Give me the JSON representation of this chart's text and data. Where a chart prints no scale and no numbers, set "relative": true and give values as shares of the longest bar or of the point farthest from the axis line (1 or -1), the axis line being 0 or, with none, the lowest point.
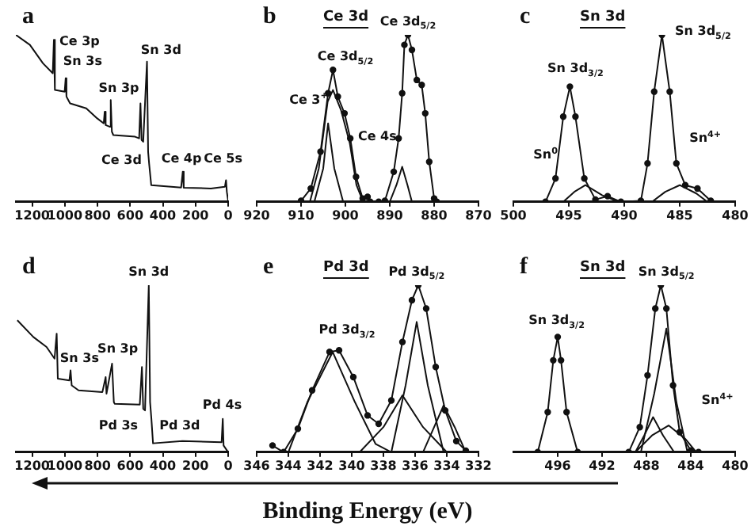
{
  "chart_data": [
    {
      "type": "line",
      "title": "a",
      "relative": true,
      "tick_labels": "x",
      "xlim": [
        1300,
        0
      ],
      "xticks": [
        1200,
        1000,
        800,
        600,
        400,
        200,
        0
      ],
      "annotations": [
        "Ce 3p",
        "Sn 3s",
        "Sn 3p",
        "Sn 3d",
        "Ce 3d",
        "Ce 4p",
        "Ce 5s"
      ],
      "series": [
        {
          "color": "#111111",
          "marker": "none",
          "x": [
            1300,
            1214,
            1134,
            1074,
            1067,
            1061,
            1001,
            995,
            990,
            968,
            869,
            802,
            762,
            756,
            750,
            726,
            719,
            712,
            703,
            570,
            545,
            537,
            530,
            520,
            497,
            490,
            484,
            471,
            288,
            278,
            272,
            106,
            20,
            13,
            8,
            0
          ],
          "values": [
            1.0,
            0.94,
            0.83,
            0.77,
            0.97,
            0.67,
            0.66,
            0.74,
            0.63,
            0.59,
            0.56,
            0.5,
            0.47,
            0.54,
            0.46,
            0.45,
            0.61,
            0.42,
            0.4,
            0.39,
            0.38,
            0.59,
            0.37,
            0.36,
            0.84,
            0.3,
            0.23,
            0.1,
            0.086,
            0.18,
            0.085,
            0.08,
            0.09,
            0.13,
            0.06,
            0.006
          ]
        }
      ]
    },
    {
      "type": "line",
      "title": "b",
      "subtitle": "Ce 3d",
      "relative": true,
      "tick_labels": "x",
      "xlim": [
        920,
        870
      ],
      "xticks": [
        920,
        910,
        900,
        890,
        880,
        870
      ],
      "annotations": [
        "Ce 3d$_{5/2}$",
        "Ce 3d$_{5/2}$",
        "Ce 3$^{+}$",
        "Ce 4s"
      ],
      "series": [
        {
          "color": "#111111",
          "marker": "circle",
          "x": [
            910,
            907.8,
            905.6,
            903.9,
            902.8,
            901.7,
            900.2,
            898.9,
            897.6,
            896.1,
            895,
            894.4,
            892.5,
            891.1,
            889.1,
            888,
            887.2,
            886.7,
            885.9,
            885,
            883.9,
            882.8,
            882,
            881.1,
            880,
            879.4
          ],
          "values": [
            0.006,
            0.08,
            0.3,
            0.65,
            0.79,
            0.63,
            0.53,
            0.38,
            0.15,
            0.02,
            0.03,
            0,
            0,
            0.006,
            0.18,
            0.38,
            0.65,
            0.94,
            1.0,
            0.91,
            0.73,
            0.7,
            0.53,
            0.24,
            0.02,
            0
          ]
        },
        {
          "color": "#111111",
          "marker": "none",
          "x": [
            907,
            905,
            903.9,
            902.5,
            900.5
          ],
          "values": [
            0,
            0.2,
            0.47,
            0.2,
            0
          ]
        },
        {
          "color": "#111111",
          "marker": "none",
          "x": [
            908,
            906,
            904,
            902.8,
            901,
            899,
            897.5,
            896
          ],
          "values": [
            0,
            0.2,
            0.6,
            0.67,
            0.55,
            0.35,
            0.1,
            0
          ]
        },
        {
          "color": "#111111",
          "marker": "none",
          "x": [
            890,
            888.5,
            887.2,
            886,
            885
          ],
          "values": [
            0,
            0.1,
            0.21,
            0.1,
            0
          ]
        }
      ]
    },
    {
      "type": "line",
      "title": "c",
      "subtitle": "Sn 3d",
      "relative": true,
      "tick_labels": "x",
      "xlim": [
        500,
        480
      ],
      "xticks": [
        500,
        495,
        490,
        485,
        480
      ],
      "annotations": [
        "Sn 3d$_{5/2}$",
        "Sn 3d$_{3/2}$",
        "Sn$^{0}$",
        "Sn$^{4+}$"
      ],
      "series": [
        {
          "color": "#111111",
          "marker": "circle",
          "x": [
            497.1,
            496.2,
            495.5,
            494.9,
            494.4,
            493.6,
            492.6,
            491.5,
            490.3,
            488.5,
            487.9,
            487.3,
            486.6,
            485.9,
            485.3,
            484.5,
            483.4,
            482.2
          ],
          "values": [
            0,
            0.14,
            0.51,
            0.69,
            0.51,
            0.14,
            0.014,
            0.034,
            0,
            0.006,
            0.23,
            0.66,
            1.0,
            0.66,
            0.23,
            0.1,
            0.08,
            0.006
          ]
        },
        {
          "color": "#111111",
          "marker": "none",
          "x": [
            495.5,
            494.5,
            493.5,
            492,
            490.5
          ],
          "values": [
            0,
            0.06,
            0.1,
            0.04,
            0
          ]
        },
        {
          "color": "#111111",
          "marker": "none",
          "x": [
            487.5,
            486.3,
            485,
            483.5,
            482.5
          ],
          "values": [
            0,
            0.06,
            0.1,
            0.05,
            0
          ]
        }
      ]
    },
    {
      "type": "line",
      "title": "d",
      "relative": true,
      "tick_labels": "x",
      "xlim": [
        1300,
        0
      ],
      "xticks": [
        1200,
        1000,
        800,
        600,
        400,
        200,
        0
      ],
      "annotations": [
        "Sn 3d",
        "Sn 3s",
        "Sn 3p",
        "Pd 3s",
        "Pd 3d",
        "Pd 4s"
      ],
      "series": [
        {
          "color": "#111111",
          "marker": "none",
          "x": [
            1291,
            1193,
            1112,
            1063,
            1050,
            1043,
            972,
            965,
            958,
            916,
            770,
            750,
            745,
            711,
            700,
            695,
            541,
            528,
            520,
            509,
            486,
            478,
            470,
            460,
            280,
            85,
            40,
            33,
            28,
            0
          ],
          "values": [
            0.79,
            0.69,
            0.63,
            0.56,
            0.71,
            0.44,
            0.43,
            0.49,
            0.4,
            0.37,
            0.36,
            0.45,
            0.35,
            0.53,
            0.3,
            0.29,
            0.285,
            0.51,
            0.26,
            0.25,
            1.0,
            0.3,
            0.2,
            0.053,
            0.067,
            0.061,
            0.06,
            0.2,
            0.04,
            0
          ]
        }
      ]
    },
    {
      "type": "line",
      "title": "e",
      "subtitle": "Pd 3d",
      "xlabel": "Binding Energy (eV)",
      "relative": true,
      "tick_labels": "x",
      "xlim": [
        346,
        332
      ],
      "xticks": [
        346,
        344,
        342,
        340,
        338,
        336,
        334,
        332
      ],
      "annotations": [
        "Pd 3d$_{5/2}$",
        "Pd 3d$_{3/2}$"
      ],
      "series": [
        {
          "color": "#111111",
          "marker": "circle",
          "x": [
            345,
            344.3,
            343.4,
            342.5,
            341.4,
            340.8,
            339.9,
            339,
            338.3,
            337.5,
            336.8,
            336.2,
            335.8,
            335.3,
            334.7,
            334.1,
            333.4,
            332.8
          ],
          "values": [
            0.04,
            0,
            0.14,
            0.37,
            0.6,
            0.61,
            0.45,
            0.22,
            0.17,
            0.31,
            0.66,
            0.91,
            1.0,
            0.86,
            0.51,
            0.25,
            0.066,
            0.009
          ]
        },
        {
          "color": "#111111",
          "marker": "none",
          "x": [
            344,
            342.8,
            341.2,
            339.8,
            338.5,
            337.5
          ],
          "values": [
            0,
            0.3,
            0.6,
            0.3,
            0.05,
            0
          ]
        },
        {
          "color": "#111111",
          "marker": "none",
          "x": [
            339.5,
            338,
            336.8,
            335.5,
            334
          ],
          "values": [
            0,
            0.15,
            0.34,
            0.15,
            0
          ]
        },
        {
          "color": "#111111",
          "marker": "none",
          "x": [
            337.5,
            336.6,
            335.9,
            335.2,
            334.2
          ],
          "values": [
            0,
            0.4,
            0.78,
            0.4,
            0
          ]
        },
        {
          "color": "#111111",
          "marker": "none",
          "x": [
            335.5,
            334.8,
            334.2,
            333.5,
            332.8
          ],
          "values": [
            0,
            0.15,
            0.28,
            0.15,
            0
          ]
        }
      ]
    },
    {
      "type": "line",
      "title": "f",
      "subtitle": "Sn 3d",
      "relative": true,
      "tick_labels": "x",
      "xlim": [
        500,
        480
      ],
      "xticks": [
        496,
        492,
        488,
        484,
        480
      ],
      "annotations": [
        "Sn 3d$_{5/2}$",
        "Sn 3d$_{3/2}$",
        "Sn$^{4+}$"
      ],
      "series": [
        {
          "color": "#111111",
          "marker": "circle",
          "x": [
            497.8,
            496.9,
            496.4,
            496,
            495.7,
            495.2,
            494.2,
            489.6,
            488.6,
            487.9,
            487.2,
            486.7,
            486.2,
            485.6,
            485,
            484,
            483.3
          ],
          "values": [
            0,
            0.24,
            0.55,
            0.69,
            0.55,
            0.24,
            0,
            0,
            0.15,
            0.46,
            0.86,
            1.0,
            0.86,
            0.4,
            0.12,
            0.01,
            0
          ]
        },
        {
          "color": "#111111",
          "marker": "none",
          "x": [
            488.5,
            487.3,
            486.2,
            485.3,
            484.3
          ],
          "values": [
            0,
            0.35,
            0.74,
            0.3,
            0
          ]
        },
        {
          "color": "#111111",
          "marker": "none",
          "x": [
            489,
            488.2,
            487.4,
            486.5,
            485.5
          ],
          "values": [
            0,
            0.1,
            0.21,
            0.1,
            0
          ]
        },
        {
          "color": "#111111",
          "marker": "none",
          "x": [
            489,
            487.5,
            486,
            484.5,
            483.5
          ],
          "values": [
            0,
            0.1,
            0.16,
            0.08,
            0
          ]
        }
      ]
    }
  ]
}
